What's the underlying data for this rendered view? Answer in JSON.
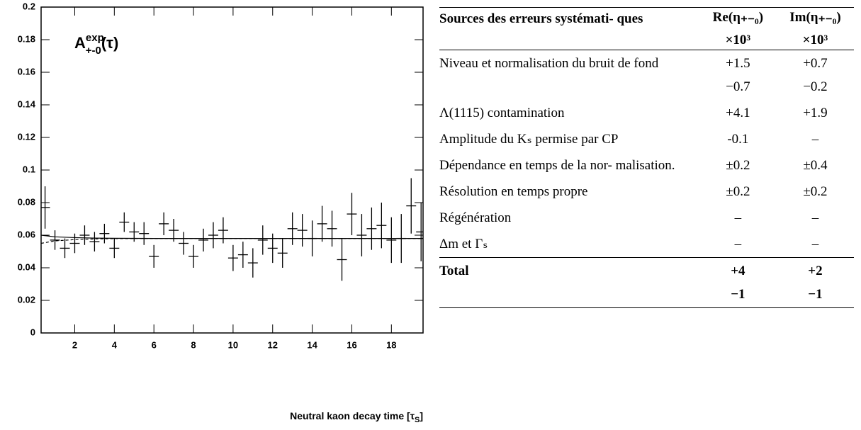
{
  "chart_data": {
    "type": "errorbar",
    "title": {
      "main": "A",
      "sup": "exp",
      "sub": "+-0",
      "arg": "(τ)"
    },
    "x_label": {
      "main": "Neutral kaon decay time [τ",
      "sub": "S",
      "end": "]"
    },
    "x": [
      0.5,
      1.0,
      1.5,
      2.0,
      2.5,
      3.0,
      3.5,
      4.0,
      4.5,
      5.0,
      5.5,
      6.0,
      6.5,
      7.0,
      7.5,
      8.0,
      8.5,
      9.0,
      9.5,
      10.0,
      10.5,
      11.0,
      11.5,
      12.0,
      12.5,
      13.0,
      13.5,
      14.0,
      14.5,
      15.0,
      15.5,
      16.0,
      16.5,
      17.0,
      17.5,
      18.0,
      18.5,
      19.0,
      19.5
    ],
    "values": [
      0.077,
      0.057,
      0.052,
      0.055,
      0.06,
      0.056,
      0.061,
      0.052,
      0.068,
      0.062,
      0.061,
      0.047,
      0.067,
      0.063,
      0.055,
      0.047,
      0.057,
      0.06,
      0.063,
      0.046,
      0.048,
      0.043,
      0.057,
      0.052,
      0.049,
      0.064,
      0.063,
      0.058,
      0.067,
      0.064,
      0.045,
      0.073,
      0.06,
      0.064,
      0.066,
      0.057,
      0.058,
      0.078,
      0.062
    ],
    "errors": [
      0.013,
      0.006,
      0.006,
      0.006,
      0.006,
      0.006,
      0.006,
      0.006,
      0.006,
      0.006,
      0.007,
      0.007,
      0.007,
      0.007,
      0.007,
      0.007,
      0.007,
      0.008,
      0.008,
      0.008,
      0.008,
      0.009,
      0.009,
      0.009,
      0.009,
      0.01,
      0.01,
      0.011,
      0.011,
      0.011,
      0.013,
      0.013,
      0.013,
      0.013,
      0.014,
      0.014,
      0.015,
      0.017,
      0.018
    ],
    "color": "#000000",
    "series": [
      {
        "dash": false,
        "x": [
          0.3,
          1,
          2,
          3,
          4,
          6,
          10,
          19.6
        ],
        "values": [
          0.06,
          0.059,
          0.0585,
          0.0582,
          0.0581,
          0.058,
          0.058,
          0.058
        ]
      },
      {
        "dash": true,
        "x": [
          0.3,
          1,
          2,
          3,
          4,
          6,
          10,
          19.6
        ],
        "values": [
          0.055,
          0.0565,
          0.0573,
          0.0577,
          0.0579,
          0.058,
          0.058,
          0.058
        ]
      }
    ],
    "xlim": [
      0.3,
      19.6
    ],
    "xticks": [
      2,
      4,
      6,
      8,
      10,
      12,
      14,
      16,
      18
    ],
    "ylim": [
      0,
      0.2
    ],
    "yticks": [
      0,
      0.02,
      0.04,
      0.06,
      0.08,
      0.1,
      0.12,
      0.14,
      0.16,
      0.18,
      0.2
    ]
  },
  "table": {
    "header": {
      "source": "Sources des erreurs systémati- ques",
      "re": "Re(η₊₋₀)",
      "im": "Im(η₊₋₀)",
      "unit_re": "×10³",
      "unit_im": "×10³"
    },
    "rows": [
      {
        "source": "Niveau et normalisation du bruit de fond",
        "re": [
          "+1.5",
          "−0.7"
        ],
        "im": [
          "+0.7",
          "−0.2"
        ]
      },
      {
        "source": "Λ(1115) contamination",
        "re": [
          "+4.1"
        ],
        "im": [
          "+1.9"
        ]
      },
      {
        "source": "Amplitude du Kₛ permise par CP",
        "re": [
          "-0.1"
        ],
        "im": [
          "–"
        ]
      },
      {
        "source": "Dépendance en temps de la nor- malisation.",
        "re": [
          "±0.2"
        ],
        "im": [
          "±0.4"
        ]
      },
      {
        "source": "Résolution en temps propre",
        "re": [
          "±0.2"
        ],
        "im": [
          "±0.2"
        ]
      },
      {
        "source": "Régénération",
        "re": [
          "–"
        ],
        "im": [
          "–"
        ]
      },
      {
        "source": "Δm et Γₛ",
        "re": [
          "–"
        ],
        "im": [
          "–"
        ]
      }
    ],
    "total": {
      "source": "Total",
      "re": [
        "+4",
        "−1"
      ],
      "im": [
        "+2",
        "−1"
      ]
    }
  }
}
